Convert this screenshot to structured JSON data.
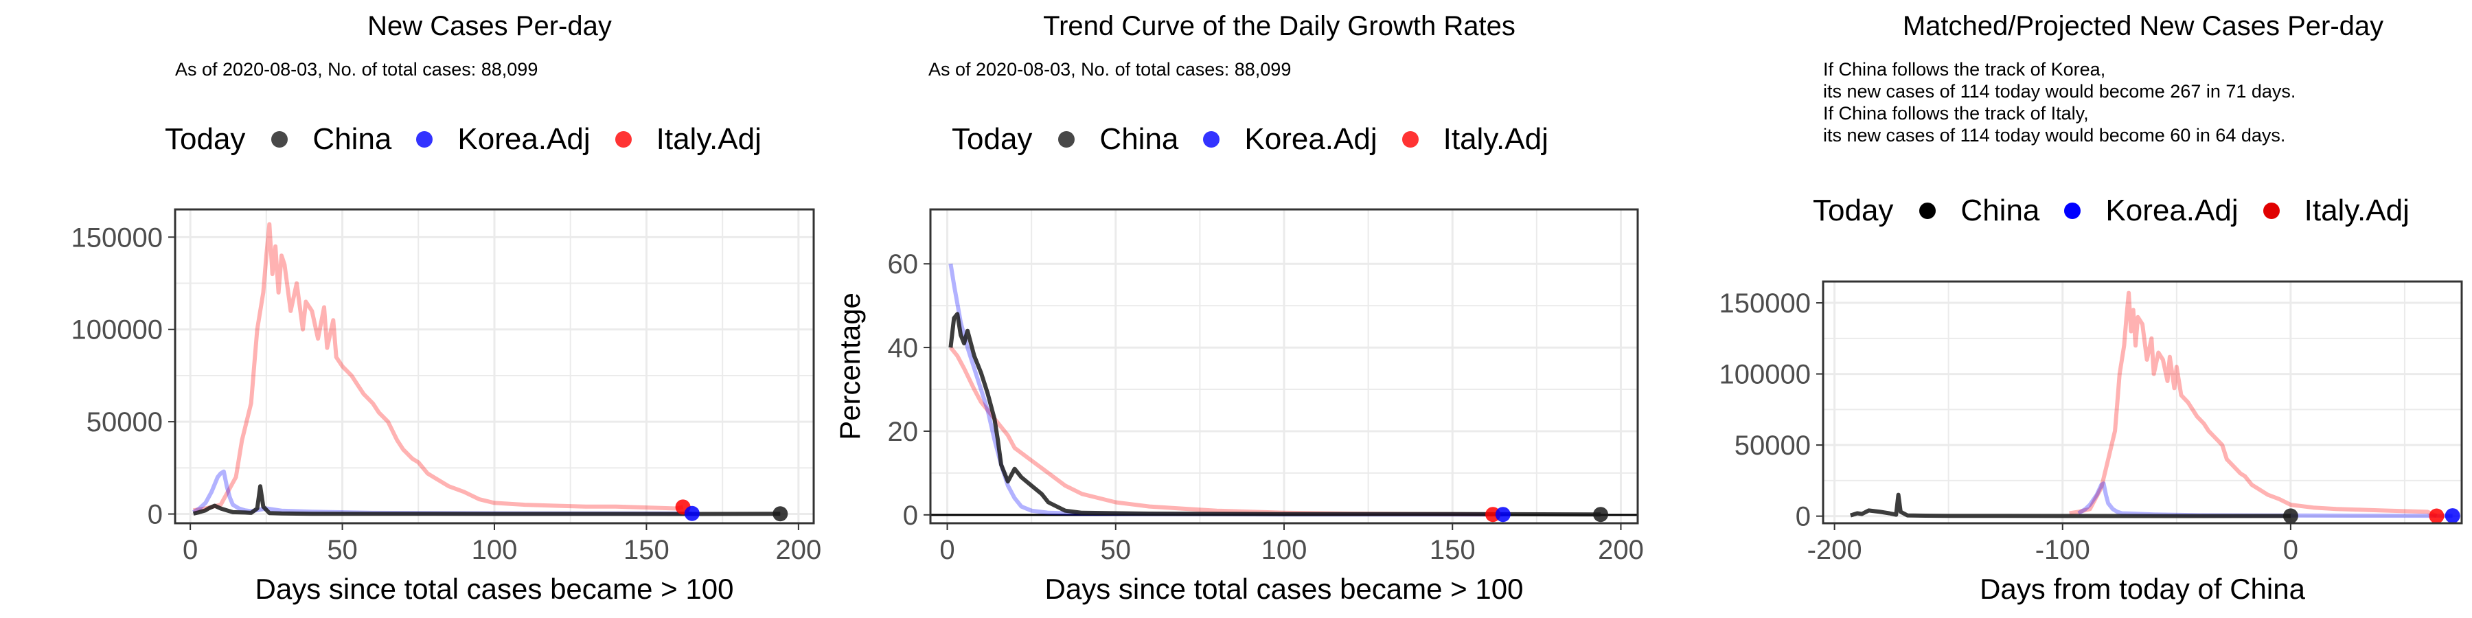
{
  "colors": {
    "china": "#1a1a1a",
    "korea": "#0000ff",
    "italy": "#ff0000",
    "grid": "#ebebeb"
  },
  "legend": {
    "title": "Today",
    "entries": [
      "China",
      "Korea.Adj",
      "Italy.Adj"
    ]
  },
  "chart_data": [
    {
      "type": "line",
      "title": "New Cases Per-day",
      "subtitle": "As of 2020-08-03, No. of total cases: 88,099",
      "xlabel": "Days since total cases became > 100",
      "ylabel": "",
      "xlim": [
        -5,
        205
      ],
      "ylim": [
        -5000,
        165000
      ],
      "xticks": [
        0,
        50,
        100,
        150,
        200
      ],
      "yticks": [
        0,
        50000,
        100000,
        150000
      ],
      "grid": true,
      "legend_position": "top",
      "series": [
        {
          "name": "China",
          "x": [
            1,
            3,
            5,
            6,
            8,
            10,
            12,
            14,
            16,
            18,
            20,
            22,
            23,
            24,
            26,
            28,
            30,
            35,
            40,
            50,
            60,
            80,
            100,
            130,
            160,
            194
          ],
          "y": [
            200,
            1000,
            2000,
            3000,
            4500,
            3000,
            2000,
            1000,
            900,
            800,
            600,
            3000,
            15000,
            4000,
            500,
            400,
            300,
            200,
            150,
            100,
            90,
            80,
            60,
            50,
            40,
            114
          ]
        },
        {
          "name": "Korea.Adj",
          "x": [
            1,
            3,
            5,
            7,
            9,
            10,
            11,
            12,
            13,
            14,
            16,
            18,
            20,
            25,
            30,
            40,
            60,
            100,
            140,
            165
          ],
          "y": [
            1000,
            3000,
            6000,
            12000,
            20000,
            22000,
            23000,
            15000,
            9000,
            5000,
            3000,
            2000,
            1500,
            3000,
            1800,
            1200,
            600,
            400,
            300,
            300
          ]
        },
        {
          "name": "Italy.Adj",
          "x": [
            1,
            5,
            10,
            15,
            17,
            20,
            21,
            22,
            24,
            25,
            26,
            27,
            28,
            29,
            30,
            31,
            33,
            35,
            37,
            38,
            40,
            42,
            44,
            45,
            47,
            48,
            50,
            53,
            55,
            57,
            60,
            62,
            65,
            68,
            70,
            73,
            75,
            78,
            80,
            85,
            90,
            95,
            100,
            110,
            120,
            130,
            140,
            150,
            160,
            162
          ],
          "y": [
            2000,
            3000,
            5000,
            20000,
            40000,
            60000,
            80000,
            100000,
            120000,
            140000,
            157000,
            130000,
            145000,
            120000,
            140000,
            135000,
            110000,
            125000,
            100000,
            115000,
            110000,
            95000,
            112000,
            90000,
            105000,
            85000,
            80000,
            75000,
            70000,
            65000,
            60000,
            55000,
            50000,
            40000,
            35000,
            30000,
            28000,
            22000,
            20000,
            15000,
            12000,
            8000,
            6000,
            5000,
            4500,
            4000,
            4000,
            3500,
            3000,
            3800
          ]
        }
      ]
    },
    {
      "type": "line",
      "title": "Trend Curve of the Daily Growth Rates",
      "subtitle": "As of 2020-08-03, No. of total cases: 88,099",
      "xlabel": "Days since total cases became > 100",
      "ylabel": "Percentage",
      "xlim": [
        -5,
        205
      ],
      "ylim": [
        -2,
        73
      ],
      "xticks": [
        0,
        50,
        100,
        150,
        200
      ],
      "yticks": [
        0,
        20,
        40,
        60
      ],
      "grid": true,
      "legend_position": "top",
      "series": [
        {
          "name": "China",
          "x": [
            1,
            2,
            3,
            4,
            5,
            6,
            8,
            10,
            12,
            14,
            15,
            16,
            18,
            20,
            22,
            25,
            28,
            30,
            35,
            40,
            60,
            100,
            150,
            194
          ],
          "y": [
            40,
            47,
            48,
            43,
            41,
            44,
            38,
            34,
            29,
            23,
            18,
            12,
            8,
            11,
            9,
            7,
            5,
            3,
            1,
            0.5,
            0.3,
            0.2,
            0.2,
            0.1
          ]
        },
        {
          "name": "Korea.Adj",
          "x": [
            1,
            2,
            4,
            6,
            8,
            10,
            12,
            14,
            16,
            18,
            20,
            22,
            25,
            30,
            40,
            60,
            100,
            165
          ],
          "y": [
            60,
            55,
            46,
            40,
            35,
            30,
            25,
            18,
            12,
            7,
            4,
            2,
            1,
            0.5,
            0.3,
            0.2,
            0.1,
            0.1
          ]
        },
        {
          "name": "Italy.Adj",
          "x": [
            1,
            3,
            5,
            8,
            10,
            13,
            15,
            18,
            20,
            25,
            30,
            35,
            40,
            45,
            50,
            60,
            70,
            80,
            100,
            120,
            162
          ],
          "y": [
            40,
            38,
            35,
            30,
            27,
            24,
            22,
            19,
            16,
            13,
            10,
            7,
            5,
            4,
            3,
            2,
            1.5,
            1,
            0.5,
            0.3,
            0.1
          ]
        }
      ]
    },
    {
      "type": "line",
      "title": "Matched/Projected New Cases Per-day",
      "subtitle": "If China follows the track of Korea,\nits new cases of 114 today would become 267 in 71 days.\nIf China follows the track of Italy,\nits new cases of 114 today would become 60 in 64 days.",
      "xlabel": "Days from today of China",
      "ylabel": "",
      "xlim": [
        -205,
        75
      ],
      "ylim": [
        -5000,
        165000
      ],
      "xticks": [
        -200,
        -100,
        0,
        100
      ],
      "yticks": [
        0,
        50000,
        100000,
        150000
      ],
      "grid": true,
      "legend_position": "top",
      "series": [
        {
          "name": "China",
          "x": [
            -193,
            -190,
            -188,
            -185,
            -180,
            -176,
            -173,
            -172,
            -171,
            -168,
            -160,
            -150,
            -100,
            -50,
            0
          ],
          "y": [
            500,
            2000,
            1500,
            4000,
            3000,
            2000,
            1000,
            15000,
            3000,
            500,
            300,
            200,
            100,
            80,
            114
          ]
        },
        {
          "name": "Korea.Adj",
          "x": [
            -93,
            -90,
            -88,
            -85,
            -83,
            -82,
            -81,
            -80,
            -78,
            -76,
            -74,
            -70,
            -60,
            -40,
            0,
            40,
            71
          ],
          "y": [
            2000,
            5000,
            8000,
            15000,
            22000,
            23000,
            15000,
            9000,
            5000,
            3000,
            2000,
            1800,
            1200,
            600,
            400,
            300,
            267
          ]
        },
        {
          "name": "Italy.Adj",
          "x": [
            -97,
            -93,
            -88,
            -83,
            -80,
            -77,
            -76,
            -75,
            -73,
            -72,
            -71,
            -70,
            -69,
            -68,
            -67,
            -65,
            -63,
            -61,
            -60,
            -58,
            -56,
            -54,
            -53,
            -51,
            -50,
            -48,
            -45,
            -43,
            -41,
            -38,
            -36,
            -33,
            -30,
            -28,
            -25,
            -22,
            -20,
            -17,
            -15,
            -10,
            -5,
            0,
            10,
            20,
            30,
            40,
            50,
            60,
            64
          ],
          "y": [
            2000,
            3000,
            5000,
            20000,
            40000,
            60000,
            80000,
            100000,
            120000,
            140000,
            157000,
            130000,
            145000,
            120000,
            140000,
            135000,
            110000,
            125000,
            100000,
            115000,
            110000,
            95000,
            112000,
            90000,
            105000,
            85000,
            80000,
            75000,
            70000,
            65000,
            60000,
            55000,
            50000,
            40000,
            35000,
            30000,
            28000,
            22000,
            20000,
            15000,
            12000,
            8000,
            6000,
            5000,
            4500,
            4000,
            3500,
            3000,
            60
          ]
        }
      ]
    }
  ]
}
